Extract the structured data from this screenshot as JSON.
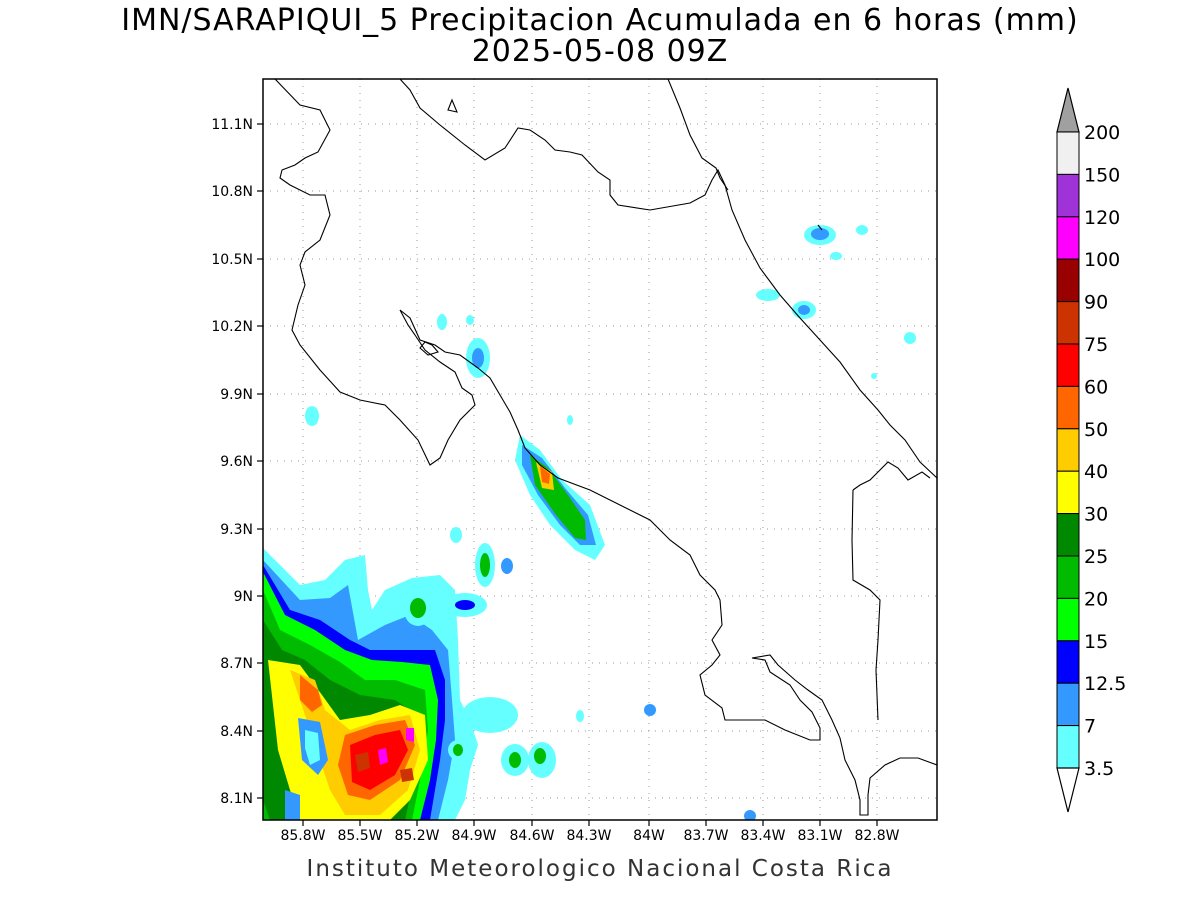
{
  "title": {
    "line1": "IMN/SARAPIQUI_5 Precipitacion Acumulada en 6 horas (mm)",
    "line2": "2025-05-08 09Z"
  },
  "footer": "Instituto Meteorologico Nacional Costa Rica",
  "axes": {
    "lat_ticks": [
      "11.1N",
      "10.8N",
      "10.5N",
      "10.2N",
      "9.9N",
      "9.6N",
      "9.3N",
      "9N",
      "8.7N",
      "8.4N",
      "8.1N"
    ],
    "lon_ticks": [
      "85.8W",
      "85.5W",
      "85.2W",
      "84.9W",
      "84.6W",
      "84.3W",
      "84W",
      "83.7W",
      "83.4W",
      "83.1W",
      "82.8W"
    ],
    "grid": true
  },
  "colorbar": {
    "labels": [
      "200",
      "150",
      "120",
      "100",
      "90",
      "75",
      "60",
      "50",
      "40",
      "30",
      "25",
      "20",
      "15",
      "12.5",
      "7",
      "3.5"
    ],
    "colors": [
      "#f0f0f0",
      "#a033d8",
      "#ff00ff",
      "#990000",
      "#cc3300",
      "#ff0000",
      "#ff6600",
      "#ffcc00",
      "#ffff00",
      "#008800",
      "#00bb00",
      "#00ff00",
      "#0000ff",
      "#3399ff",
      "#66ffff"
    ],
    "top_arrow_color": "#a0a0a0",
    "bottom_arrow_color": "#ffffff"
  }
}
